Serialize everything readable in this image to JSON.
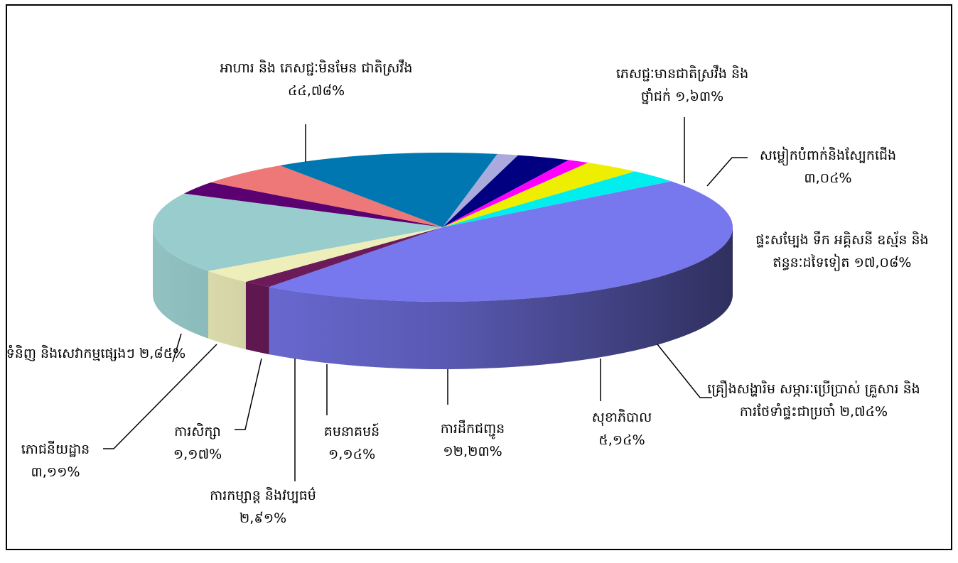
{
  "chart_data": {
    "type": "pie3d",
    "categories": [
      "អាហារ និង ភេសជ្ជៈមិនមែន ជាតិស្រវឹង",
      "ភេសជ្ជៈមានជាតិស្រវឹង និង ថ្នាំជក់",
      "សម្លៀកបំពាក់និងស្បែកជើង",
      "ផ្ទះសម្បែង ទឹក អគ្គិសនី ឧស្ម័ន និងឥន្ធនៈដទៃទៀត",
      "គ្រឿងសង្ហារិម សម្ភារៈប្រើប្រាស់ គ្រួសារ និងការថែទាំផ្ទះជាប្រចាំ",
      "សុខាភិបាល",
      "ការដឹកជញ្ជូន",
      "គមនាគមន៍",
      "ការកម្សាន្ត និងវប្បធម៌",
      "ការសិក្សា",
      "ភោជនីយដ្ឋាន",
      "ទំនិញ និងសេវាកម្មផ្សេងៗ"
    ],
    "values": [
      44.78,
      1.63,
      3.04,
      17.08,
      2.74,
      5.14,
      12.23,
      1.14,
      2.91,
      1.17,
      3.11,
      2.85
    ],
    "value_labels": [
      "៤៤,៧៨%",
      "១,៦៣%",
      "៣,០៤%",
      "១៧,០៨%",
      "២,៧៤%",
      "៥,១៤%",
      "១២,២៣%",
      "១,១៤%",
      "២,៩១%",
      "១,១៧%",
      "៣,១១%",
      "២,៨៥%"
    ],
    "colors": [
      "#7777ee",
      "#6b1a5a",
      "#eeeebb",
      "#99cccc",
      "#5a0070",
      "#ee7777",
      "#0077b0",
      "#aaaadd",
      "#000080",
      "#ff00ff",
      "#eeee00",
      "#00eeee"
    ]
  }
}
